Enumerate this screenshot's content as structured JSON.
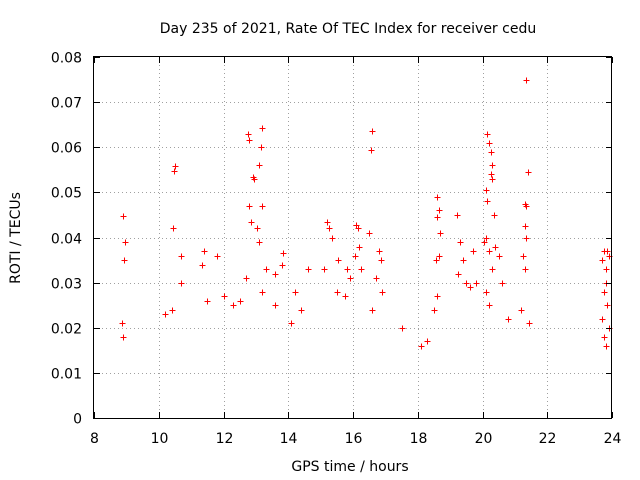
{
  "chart_data": {
    "type": "scatter",
    "title": "Day 235 of 2021, Rate Of TEC Index for receiver cedu",
    "xlabel": "GPS time / hours",
    "ylabel": "ROTI / TECUs",
    "xlim": [
      8,
      24
    ],
    "ylim": [
      0,
      0.08
    ],
    "xticks": [
      8,
      10,
      12,
      14,
      16,
      18,
      20,
      22,
      24
    ],
    "xtick_labels": [
      "8",
      "10",
      "12",
      "14",
      "16",
      "18",
      "20",
      "22",
      "24"
    ],
    "yticks": [
      0,
      0.01,
      0.02,
      0.03,
      0.04,
      0.05,
      0.06,
      0.07,
      0.08
    ],
    "ytick_labels": [
      "0",
      "0.01",
      "0.02",
      "0.03",
      "0.04",
      "0.05",
      "0.06",
      "0.07",
      "0.08"
    ],
    "grid": true,
    "marker": "+",
    "marker_color": "#ff0000",
    "series": [
      {
        "name": "ROTI",
        "points": [
          [
            8.9,
            0.0448
          ],
          [
            8.95,
            0.039
          ],
          [
            8.92,
            0.035
          ],
          [
            8.85,
            0.021
          ],
          [
            8.9,
            0.018
          ],
          [
            10.5,
            0.0558
          ],
          [
            10.48,
            0.0548
          ],
          [
            10.45,
            0.042
          ],
          [
            10.7,
            0.036
          ],
          [
            10.7,
            0.03
          ],
          [
            10.2,
            0.023
          ],
          [
            10.4,
            0.024
          ],
          [
            11.4,
            0.037
          ],
          [
            11.35,
            0.034
          ],
          [
            11.8,
            0.036
          ],
          [
            11.5,
            0.026
          ],
          [
            12.0,
            0.027
          ],
          [
            12.75,
            0.063
          ],
          [
            12.8,
            0.0615
          ],
          [
            12.9,
            0.0535
          ],
          [
            12.95,
            0.053
          ],
          [
            13.2,
            0.0642
          ],
          [
            13.15,
            0.06
          ],
          [
            13.1,
            0.056
          ],
          [
            13.2,
            0.047
          ],
          [
            12.8,
            0.047
          ],
          [
            12.85,
            0.0435
          ],
          [
            13.05,
            0.042
          ],
          [
            13.1,
            0.039
          ],
          [
            12.7,
            0.031
          ],
          [
            13.3,
            0.033
          ],
          [
            13.6,
            0.032
          ],
          [
            13.2,
            0.028
          ],
          [
            12.5,
            0.026
          ],
          [
            12.3,
            0.025
          ],
          [
            13.85,
            0.0365
          ],
          [
            13.8,
            0.034
          ],
          [
            13.6,
            0.025
          ],
          [
            14.2,
            0.028
          ],
          [
            14.4,
            0.024
          ],
          [
            14.6,
            0.033
          ],
          [
            14.1,
            0.021
          ],
          [
            15.2,
            0.0435
          ],
          [
            15.25,
            0.042
          ],
          [
            15.35,
            0.04
          ],
          [
            15.1,
            0.033
          ],
          [
            15.55,
            0.035
          ],
          [
            15.8,
            0.033
          ],
          [
            15.5,
            0.028
          ],
          [
            15.9,
            0.031
          ],
          [
            15.75,
            0.027
          ],
          [
            16.1,
            0.0428
          ],
          [
            16.15,
            0.042
          ],
          [
            16.2,
            0.038
          ],
          [
            16.05,
            0.036
          ],
          [
            16.25,
            0.033
          ],
          [
            16.6,
            0.0637
          ],
          [
            16.55,
            0.0593
          ],
          [
            16.5,
            0.041
          ],
          [
            16.8,
            0.037
          ],
          [
            16.85,
            0.035
          ],
          [
            16.7,
            0.031
          ],
          [
            16.9,
            0.028
          ],
          [
            16.6,
            0.024
          ],
          [
            17.5,
            0.02
          ],
          [
            18.1,
            0.016
          ],
          [
            18.3,
            0.017
          ],
          [
            18.6,
            0.049
          ],
          [
            18.65,
            0.046
          ],
          [
            18.6,
            0.0445
          ],
          [
            18.7,
            0.041
          ],
          [
            18.65,
            0.036
          ],
          [
            18.55,
            0.035
          ],
          [
            18.6,
            0.027
          ],
          [
            18.5,
            0.024
          ],
          [
            19.2,
            0.045
          ],
          [
            19.3,
            0.039
          ],
          [
            19.25,
            0.032
          ],
          [
            19.4,
            0.035
          ],
          [
            19.5,
            0.03
          ],
          [
            19.7,
            0.037
          ],
          [
            19.6,
            0.029
          ],
          [
            19.8,
            0.03
          ],
          [
            20.15,
            0.063
          ],
          [
            20.2,
            0.061
          ],
          [
            20.25,
            0.059
          ],
          [
            20.3,
            0.056
          ],
          [
            20.25,
            0.054
          ],
          [
            20.3,
            0.053
          ],
          [
            20.1,
            0.0505
          ],
          [
            20.15,
            0.048
          ],
          [
            20.35,
            0.045
          ],
          [
            20.1,
            0.04
          ],
          [
            20.05,
            0.039
          ],
          [
            20.2,
            0.037
          ],
          [
            20.4,
            0.038
          ],
          [
            20.5,
            0.036
          ],
          [
            20.3,
            0.033
          ],
          [
            20.1,
            0.028
          ],
          [
            20.2,
            0.025
          ],
          [
            20.6,
            0.03
          ],
          [
            20.8,
            0.022
          ],
          [
            21.35,
            0.0748
          ],
          [
            21.4,
            0.0545
          ],
          [
            21.3,
            0.0475
          ],
          [
            21.35,
            0.047
          ],
          [
            21.3,
            0.0425
          ],
          [
            21.35,
            0.04
          ],
          [
            21.25,
            0.036
          ],
          [
            21.3,
            0.033
          ],
          [
            21.2,
            0.024
          ],
          [
            21.45,
            0.021
          ],
          [
            23.75,
            0.037
          ],
          [
            23.85,
            0.037
          ],
          [
            23.7,
            0.035
          ],
          [
            23.8,
            0.033
          ],
          [
            23.9,
            0.036
          ],
          [
            23.8,
            0.03
          ],
          [
            23.75,
            0.028
          ],
          [
            23.85,
            0.025
          ],
          [
            23.7,
            0.022
          ],
          [
            23.9,
            0.02
          ],
          [
            23.75,
            0.018
          ],
          [
            23.8,
            0.016
          ]
        ]
      }
    ]
  }
}
